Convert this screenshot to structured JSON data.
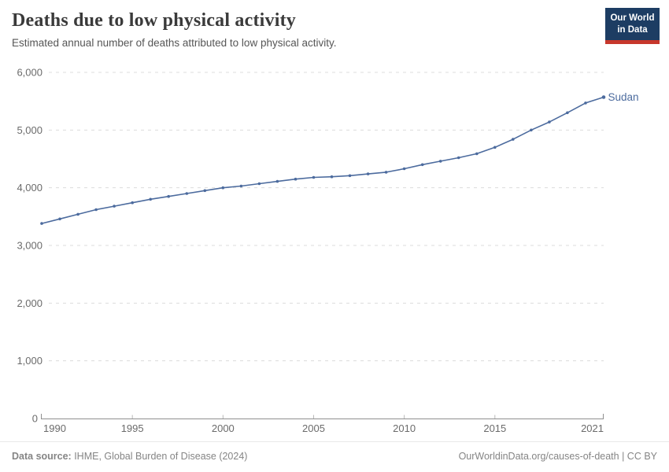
{
  "header": {
    "title": "Deaths due to low physical activity",
    "subtitle": "Estimated annual number of deaths attributed to low physical activity.",
    "logo": {
      "line1": "Our World",
      "line2": "in Data",
      "bg_color": "#1d3d63",
      "bar_color": "#c7372c"
    }
  },
  "chart_data": {
    "type": "line",
    "title": "Deaths due to low physical activity",
    "entity": "Sudan",
    "x": [
      1990,
      1991,
      1992,
      1993,
      1994,
      1995,
      1996,
      1997,
      1998,
      1999,
      2000,
      2001,
      2002,
      2003,
      2004,
      2005,
      2006,
      2007,
      2008,
      2009,
      2010,
      2011,
      2012,
      2013,
      2014,
      2015,
      2016,
      2017,
      2018,
      2019,
      2020,
      2021
    ],
    "series": [
      {
        "name": "Sudan",
        "color": "#4C6B9E",
        "values": [
          3380,
          3460,
          3540,
          3620,
          3680,
          3740,
          3800,
          3850,
          3900,
          3950,
          4000,
          4030,
          4070,
          4110,
          4150,
          4180,
          4190,
          4210,
          4240,
          4270,
          4330,
          4400,
          4460,
          4520,
          4590,
          4700,
          4840,
          5000,
          5140,
          5300,
          5470,
          5570
        ]
      }
    ],
    "xlim": [
      1990,
      2021
    ],
    "ylim": [
      0,
      6000
    ],
    "yticks": [
      0,
      1000,
      2000,
      3000,
      4000,
      5000,
      6000
    ],
    "ytick_labels": [
      "0",
      "1,000",
      "2,000",
      "3,000",
      "4,000",
      "5,000",
      "6,000"
    ],
    "xticks": [
      1990,
      1995,
      2000,
      2005,
      2010,
      2015,
      2021
    ],
    "grid": "horizontal-dashed",
    "legend": "end-of-line-label"
  },
  "footer": {
    "source_label": "Data source:",
    "source_text": " IHME, Global Burden of Disease (2024)",
    "credit": "OurWorldinData.org/causes-of-death | CC BY"
  },
  "colors": {
    "title": "#3a3a3a",
    "subtitle": "#565656",
    "tick": "#6b6b6b",
    "grid": "#dcdcdc",
    "axis": "#8f8f8f",
    "footer_text": "#858585",
    "line": "#4C6B9E"
  }
}
